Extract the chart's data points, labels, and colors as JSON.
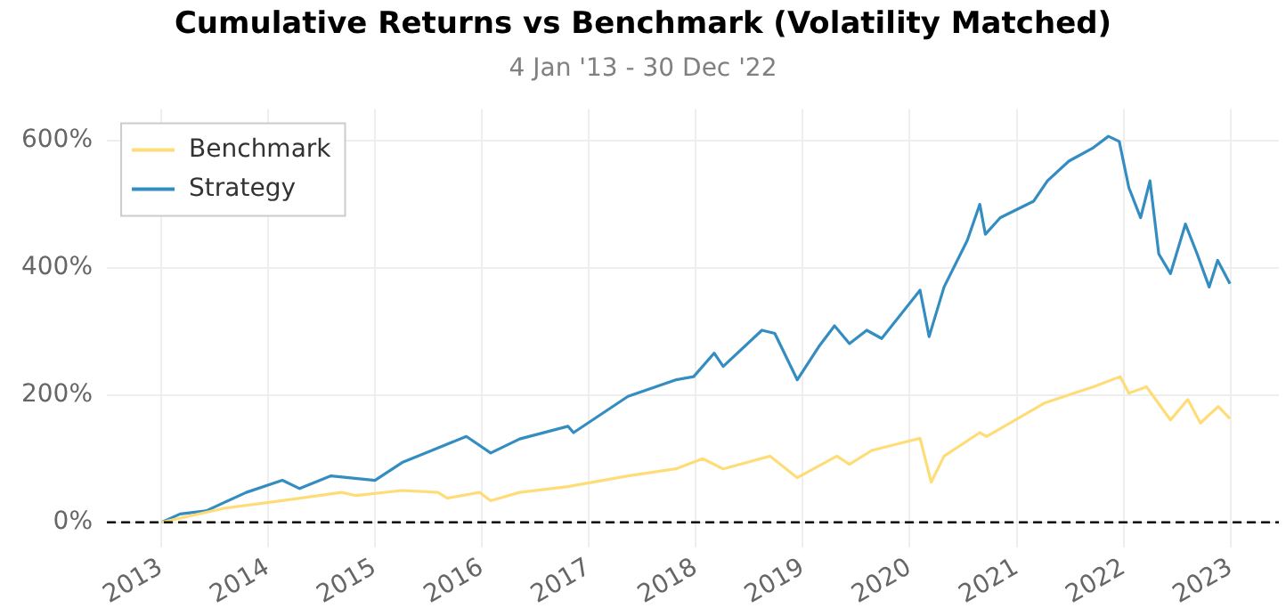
{
  "chart_data": {
    "type": "line",
    "title": "Cumulative Returns vs Benchmark (Volatility Matched)",
    "subtitle": "4 Jan '13 - 30 Dec '22",
    "xlim": [
      "2012-07-01",
      "2023-06-15"
    ],
    "xticks": [
      "2013",
      "2014",
      "2015",
      "2016",
      "2017",
      "2018",
      "2019",
      "2020",
      "2021",
      "2022",
      "2023"
    ],
    "ylim": [
      -40,
      650
    ],
    "yticks": [
      {
        "value": 0,
        "label": "0%"
      },
      {
        "value": 200,
        "label": "200%"
      },
      {
        "value": 400,
        "label": "400%"
      },
      {
        "value": 600,
        "label": "600%"
      }
    ],
    "grid": true,
    "legend": "top left",
    "line_style": "solid",
    "marker": "none",
    "ref_lines": [
      {
        "axis": "y",
        "value": 0,
        "color": "#000000",
        "line_style": "dashed"
      }
    ],
    "series": [
      {
        "name": "Benchmark",
        "color": "#fedd78",
        "x": [
          "2013-01-04",
          "2013-08-05",
          "2014-02-20",
          "2014-09-10",
          "2014-10-30",
          "2015-04-05",
          "2015-08-05",
          "2015-09-06",
          "2015-12-25",
          "2016-02-01",
          "2016-05-10",
          "2016-10-22",
          "2017-05-15",
          "2017-10-25",
          "2018-01-25",
          "2018-04-05",
          "2018-09-12",
          "2018-12-14",
          "2019-04-28",
          "2019-06-10",
          "2019-08-25",
          "2020-02-06",
          "2020-03-15",
          "2020-04-28",
          "2020-08-28",
          "2020-09-20",
          "2020-12-28",
          "2021-04-08",
          "2021-09-20",
          "2021-12-20",
          "2022-01-19",
          "2022-03-20",
          "2022-06-10",
          "2022-08-08",
          "2022-09-20",
          "2022-11-20",
          "2022-12-30"
        ],
        "values": [
          0,
          22,
          34,
          47,
          42,
          50,
          47,
          38,
          47,
          34,
          47,
          56,
          73,
          84,
          100,
          84,
          104,
          70,
          104,
          91,
          113,
          132,
          63,
          104,
          141,
          135,
          161,
          188,
          213,
          229,
          203,
          213,
          161,
          193,
          156,
          182,
          163
        ]
      },
      {
        "name": "Strategy",
        "color": "#348dc1",
        "x": [
          "2013-01-04",
          "2013-03-08",
          "2013-06-05",
          "2013-10-20",
          "2014-02-20",
          "2014-04-20",
          "2014-08-05",
          "2015-01-02",
          "2015-04-05",
          "2015-11-10",
          "2016-02-01",
          "2016-05-10",
          "2016-10-22",
          "2016-11-10",
          "2017-05-15",
          "2017-10-25",
          "2017-12-25",
          "2018-03-05",
          "2018-04-05",
          "2018-08-15",
          "2018-09-28",
          "2018-12-14",
          "2019-02-25",
          "2019-04-20",
          "2019-06-10",
          "2019-08-08",
          "2019-09-28",
          "2020-02-06",
          "2020-03-08",
          "2020-04-28",
          "2020-07-16",
          "2020-08-28",
          "2020-09-16",
          "2020-11-06",
          "2021-02-28",
          "2021-04-16",
          "2021-06-28",
          "2021-09-16",
          "2021-11-10",
          "2021-12-17",
          "2022-01-19",
          "2022-02-28",
          "2022-04-01",
          "2022-05-01",
          "2022-06-10",
          "2022-07-31",
          "2022-09-09",
          "2022-10-20",
          "2022-11-18",
          "2022-12-30"
        ],
        "values": [
          0,
          13,
          18,
          47,
          66,
          53,
          73,
          66,
          94,
          135,
          109,
          131,
          151,
          141,
          198,
          224,
          229,
          266,
          245,
          302,
          297,
          224,
          276,
          309,
          281,
          302,
          289,
          365,
          292,
          370,
          443,
          500,
          453,
          479,
          505,
          537,
          568,
          588,
          607,
          599,
          526,
          479,
          537,
          422,
          391,
          469,
          422,
          370,
          412,
          375
        ]
      }
    ]
  }
}
